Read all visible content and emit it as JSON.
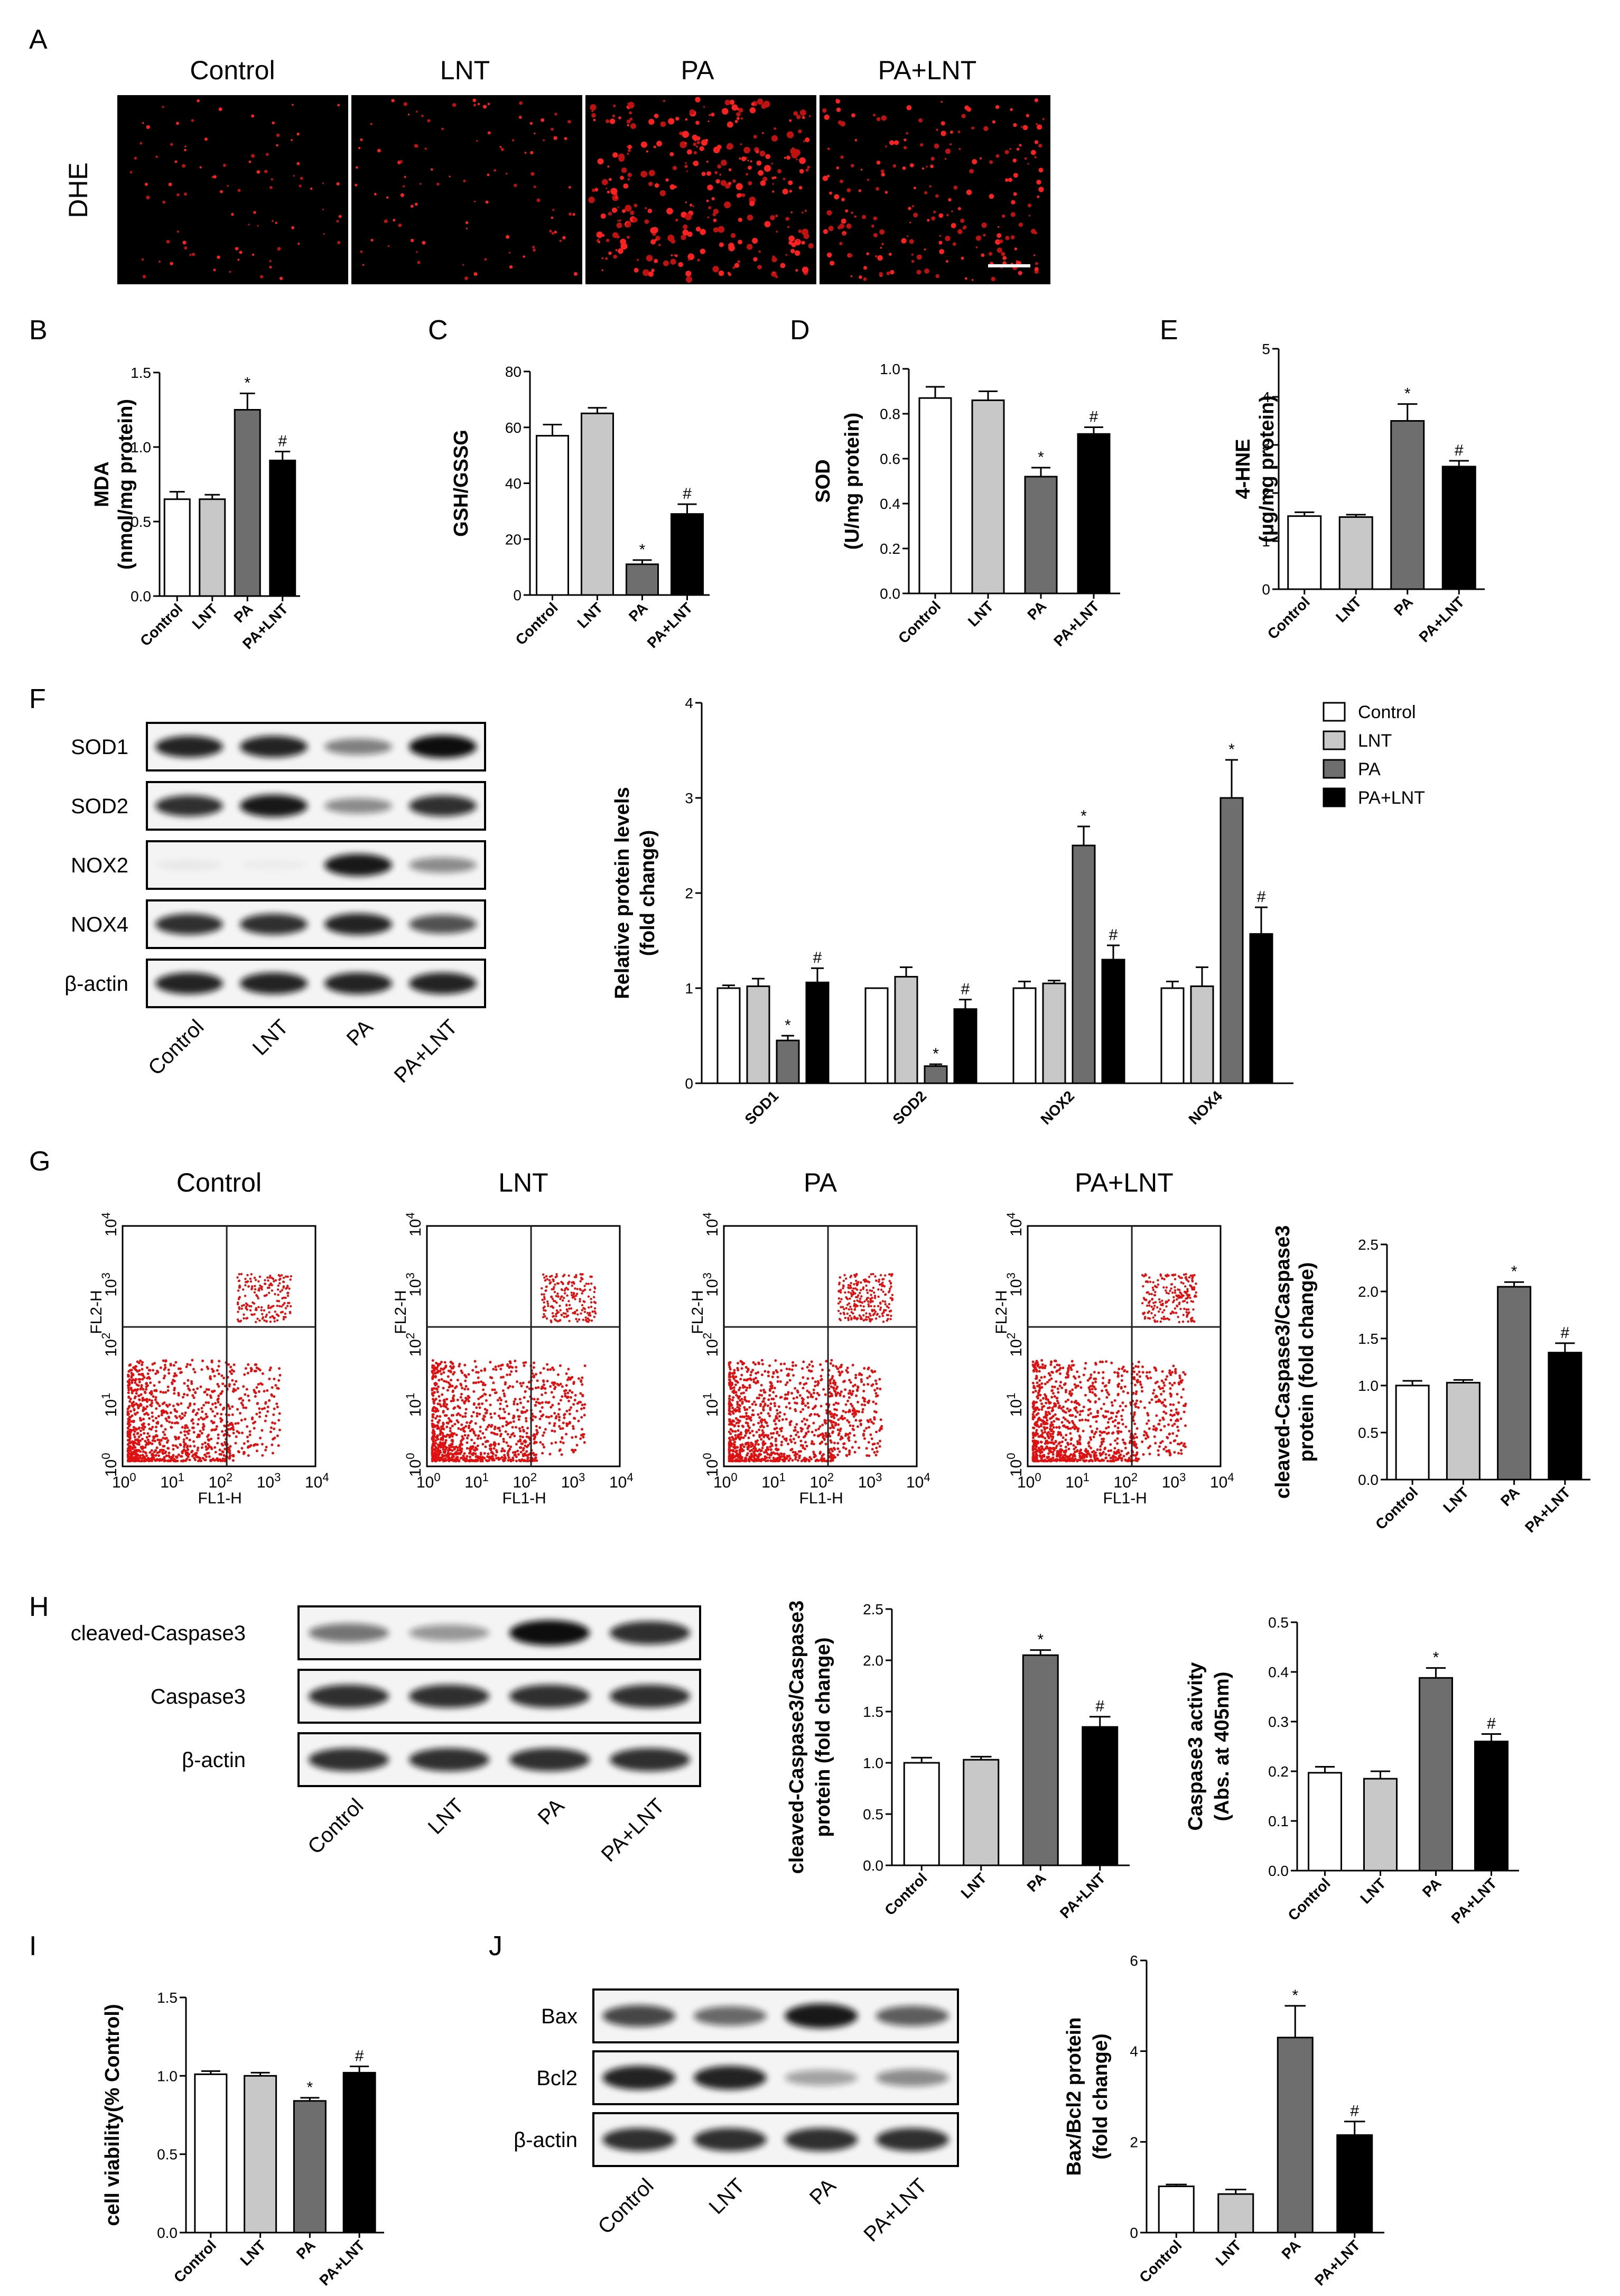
{
  "figure": {
    "panel_letters": [
      "A",
      "B",
      "C",
      "D",
      "E",
      "F",
      "G",
      "H",
      "I",
      "J"
    ],
    "groups": [
      "Control",
      "LNT",
      "PA",
      "PA+LNT"
    ],
    "colors": {
      "Control": "#ffffff",
      "LNT": "#c8c8c8",
      "PA": "#6e6e6e",
      "PA+LNT": "#000000"
    }
  },
  "panelA": {
    "row_label": "DHE",
    "headers": [
      "Control",
      "LNT",
      "PA",
      "PA+LNT"
    ],
    "signal_density": [
      0.15,
      0.18,
      0.9,
      0.55
    ]
  },
  "panelF_blot": {
    "rows": [
      "SOD1",
      "SOD2",
      "NOX2",
      "NOX4",
      "β-actin"
    ],
    "lanes": [
      "Control",
      "LNT",
      "PA",
      "PA+LNT"
    ],
    "band_intensity": [
      [
        0.9,
        0.9,
        0.5,
        1.0
      ],
      [
        0.85,
        0.95,
        0.45,
        0.85
      ],
      [
        0.05,
        0.02,
        0.95,
        0.45
      ],
      [
        0.85,
        0.85,
        0.9,
        0.7
      ],
      [
        0.9,
        0.9,
        0.9,
        0.9
      ]
    ]
  },
  "panelG_flow": {
    "titles": [
      "Control",
      "LNT",
      "PA",
      "PA+LNT"
    ],
    "xlabel": "FL1-H",
    "ylabel": "FL2-H",
    "ticks": [
      "10",
      "0",
      "1",
      "2",
      "3",
      "4"
    ]
  },
  "panelH_blot": {
    "rows": [
      "cleaved-Caspase3",
      "Caspase3",
      "β-actin"
    ],
    "lanes": [
      "Control",
      "LNT",
      "PA",
      "PA+LNT"
    ],
    "band_intensity": [
      [
        0.55,
        0.4,
        1.0,
        0.85
      ],
      [
        0.85,
        0.85,
        0.85,
        0.85
      ],
      [
        0.85,
        0.85,
        0.85,
        0.85
      ]
    ]
  },
  "panelJ_blot": {
    "rows": [
      "Bax",
      "Bcl2",
      "β-actin"
    ],
    "lanes": [
      "Control",
      "LNT",
      "PA",
      "PA+LNT"
    ],
    "band_intensity": [
      [
        0.75,
        0.6,
        0.95,
        0.65
      ],
      [
        0.9,
        0.9,
        0.35,
        0.45
      ],
      [
        0.85,
        0.85,
        0.85,
        0.85
      ]
    ]
  },
  "chart_data": [
    {
      "id": "B",
      "type": "bar",
      "categories": [
        "Control",
        "LNT",
        "PA",
        "PA+LNT"
      ],
      "values": [
        0.65,
        0.65,
        1.25,
        0.91
      ],
      "errors": [
        0.05,
        0.03,
        0.11,
        0.06
      ],
      "marks": [
        "",
        "",
        "*",
        "#"
      ],
      "ylabel": [
        "MDA",
        "(nmol/mg protein)"
      ],
      "ylim": [
        0,
        1.5
      ],
      "ticks": [
        "0.0",
        "0.5",
        "1.0",
        "1.5"
      ]
    },
    {
      "id": "C",
      "type": "bar",
      "categories": [
        "Control",
        "LNT",
        "PA",
        "PA+LNT"
      ],
      "values": [
        57,
        65,
        11,
        29
      ],
      "errors": [
        4,
        2,
        1.5,
        3.5
      ],
      "marks": [
        "",
        "",
        "*",
        "#"
      ],
      "ylabel": [
        "GSH/GSSG"
      ],
      "ylim": [
        0,
        80
      ],
      "ticks": [
        "0",
        "20",
        "40",
        "60",
        "80"
      ]
    },
    {
      "id": "D",
      "type": "bar",
      "categories": [
        "Control",
        "LNT",
        "PA",
        "PA+LNT"
      ],
      "values": [
        0.87,
        0.86,
        0.52,
        0.71
      ],
      "errors": [
        0.05,
        0.04,
        0.04,
        0.03
      ],
      "marks": [
        "",
        "",
        "*",
        "#"
      ],
      "ylabel": [
        "SOD",
        "(U/mg protein)"
      ],
      "ylim": [
        0,
        1.0
      ],
      "ticks": [
        "0.0",
        "0.2",
        "0.4",
        "0.6",
        "0.8",
        "1.0"
      ]
    },
    {
      "id": "E",
      "type": "bar",
      "categories": [
        "Control",
        "LNT",
        "PA",
        "PA+LNT"
      ],
      "values": [
        1.52,
        1.5,
        3.5,
        2.55
      ],
      "errors": [
        0.08,
        0.05,
        0.35,
        0.12
      ],
      "marks": [
        "",
        "",
        "*",
        "#"
      ],
      "ylabel": [
        "4-HNE",
        "(μg/mg protein)"
      ],
      "ylim": [
        0,
        5
      ],
      "ticks": [
        "0",
        "1",
        "2",
        "3",
        "4",
        "5"
      ]
    },
    {
      "id": "F",
      "type": "bar",
      "categories": [
        "SOD1",
        "SOD2",
        "NOX2",
        "NOX4"
      ],
      "series": [
        {
          "name": "Control",
          "values": [
            1.0,
            1.0,
            1.0,
            1.0
          ],
          "errors": [
            0.03,
            0.0,
            0.07,
            0.07
          ]
        },
        {
          "name": "LNT",
          "values": [
            1.02,
            1.12,
            1.05,
            1.02
          ],
          "errors": [
            0.08,
            0.1,
            0.03,
            0.2
          ]
        },
        {
          "name": "PA",
          "values": [
            0.45,
            0.18,
            2.5,
            3.0
          ],
          "errors": [
            0.05,
            0.02,
            0.2,
            0.4
          ]
        },
        {
          "name": "PA+LNT",
          "values": [
            1.06,
            0.78,
            1.3,
            1.57
          ],
          "errors": [
            0.15,
            0.1,
            0.15,
            0.28
          ]
        }
      ],
      "marks": [
        [
          "",
          "",
          "*",
          "#"
        ],
        [
          "",
          "",
          "*",
          "#"
        ],
        [
          "",
          "",
          "*",
          "#"
        ],
        [
          "",
          "",
          "*",
          "#"
        ]
      ],
      "ylabel": [
        "Relative protein levels",
        "(fold change)"
      ],
      "ylim": [
        0,
        4
      ],
      "ticks": [
        "0",
        "1",
        "2",
        "3",
        "4"
      ],
      "legend": [
        "Control",
        "LNT",
        "PA",
        "PA+LNT"
      ],
      "legend_position": "top-right"
    },
    {
      "id": "G",
      "type": "bar",
      "categories": [
        "Control",
        "LNT",
        "PA",
        "PA+LNT"
      ],
      "values": [
        1.0,
        1.03,
        2.05,
        1.35
      ],
      "errors": [
        0.05,
        0.03,
        0.05,
        0.1
      ],
      "marks": [
        "",
        "",
        "*",
        "#"
      ],
      "ylabel": [
        "cleaved-Caspase3/Caspase3",
        "protein (fold change)"
      ],
      "ylim": [
        0,
        2.5
      ],
      "ticks": [
        "0.0",
        "0.5",
        "1.0",
        "1.5",
        "2.0",
        "2.5"
      ]
    },
    {
      "id": "H1",
      "type": "bar",
      "categories": [
        "Control",
        "LNT",
        "PA",
        "PA+LNT"
      ],
      "values": [
        1.0,
        1.03,
        2.05,
        1.35
      ],
      "errors": [
        0.05,
        0.03,
        0.05,
        0.1
      ],
      "marks": [
        "",
        "",
        "*",
        "#"
      ],
      "ylabel": [
        "cleaved-Caspase3/Caspase3",
        "protein (fold change)"
      ],
      "ylim": [
        0,
        2.5
      ],
      "ticks": [
        "0.0",
        "0.5",
        "1.0",
        "1.5",
        "2.0",
        "2.5"
      ]
    },
    {
      "id": "H2",
      "type": "bar",
      "categories": [
        "Control",
        "LNT",
        "PA",
        "PA+LNT"
      ],
      "values": [
        0.197,
        0.185,
        0.388,
        0.26
      ],
      "errors": [
        0.012,
        0.015,
        0.02,
        0.015
      ],
      "marks": [
        "",
        "",
        "*",
        "#"
      ],
      "ylabel": [
        "Caspase3  activity",
        "(Abs. at 405nm)"
      ],
      "ylim": [
        0,
        0.5
      ],
      "ticks": [
        "0.0",
        "0.1",
        "0.2",
        "0.3",
        "0.4",
        "0.5"
      ]
    },
    {
      "id": "I",
      "type": "bar",
      "categories": [
        "Control",
        "LNT",
        "PA",
        "PA+LNT"
      ],
      "values": [
        1.01,
        1.0,
        0.84,
        1.02
      ],
      "errors": [
        0.02,
        0.02,
        0.02,
        0.04
      ],
      "marks": [
        "",
        "",
        "*",
        "#"
      ],
      "ylabel": [
        "cell viability(% Control)"
      ],
      "ylim": [
        0,
        1.5
      ],
      "ticks": [
        "0.0",
        "0.5",
        "1.0",
        "1.5"
      ]
    },
    {
      "id": "J",
      "type": "bar",
      "categories": [
        "Control",
        "LNT",
        "PA",
        "PA+LNT"
      ],
      "values": [
        1.02,
        0.85,
        4.3,
        2.15
      ],
      "errors": [
        0.04,
        0.1,
        0.7,
        0.3
      ],
      "marks": [
        "",
        "",
        "*",
        "#"
      ],
      "ylabel": [
        "Bax/Bcl2 protein",
        "(fold change)"
      ],
      "ylim": [
        0,
        6
      ],
      "ticks": [
        "0",
        "2",
        "4",
        "6"
      ]
    }
  ]
}
